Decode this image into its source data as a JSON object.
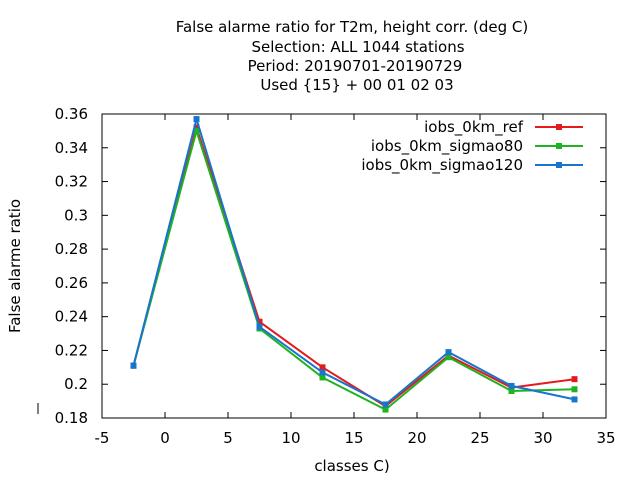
{
  "chart_data": {
    "type": "line",
    "title_lines": [
      "False alarme ratio  for T2m, height corr. (deg C)",
      "Selection: ALL   1044 stations",
      "Period: 20190701-20190729",
      "Used {15} + 00 01 02 03"
    ],
    "xlabel": "classes C)",
    "ylabel": "False alarme ratio",
    "xlim": [
      -5,
      35
    ],
    "ylim": [
      0.18,
      0.36
    ],
    "xticks": [
      "-5",
      "0",
      "5",
      "10",
      "15",
      "20",
      "25",
      "30",
      "35"
    ],
    "yticks": [
      "0.18",
      "0.2",
      "0.22",
      "0.24",
      "0.26",
      "0.28",
      "0.3",
      "0.32",
      "0.34",
      "0.36"
    ],
    "grid": false,
    "legend_position": "top-right",
    "x": [
      -2.5,
      2.5,
      7.5,
      12.5,
      17.5,
      22.5,
      27.5,
      32.5
    ],
    "series": [
      {
        "name": "iobs_0km_ref",
        "color": "#e41a1c",
        "values": [
          0.211,
          0.352,
          0.237,
          0.21,
          0.187,
          0.217,
          0.198,
          0.203
        ]
      },
      {
        "name": "iobs_0km_sigmao80",
        "color": "#1fb31f",
        "values": [
          0.211,
          0.35,
          0.233,
          0.204,
          0.185,
          0.216,
          0.196,
          0.197
        ]
      },
      {
        "name": "iobs_0km_sigmao120",
        "color": "#1874cd",
        "values": [
          0.211,
          0.357,
          0.234,
          0.207,
          0.188,
          0.219,
          0.199,
          0.191
        ]
      }
    ]
  }
}
